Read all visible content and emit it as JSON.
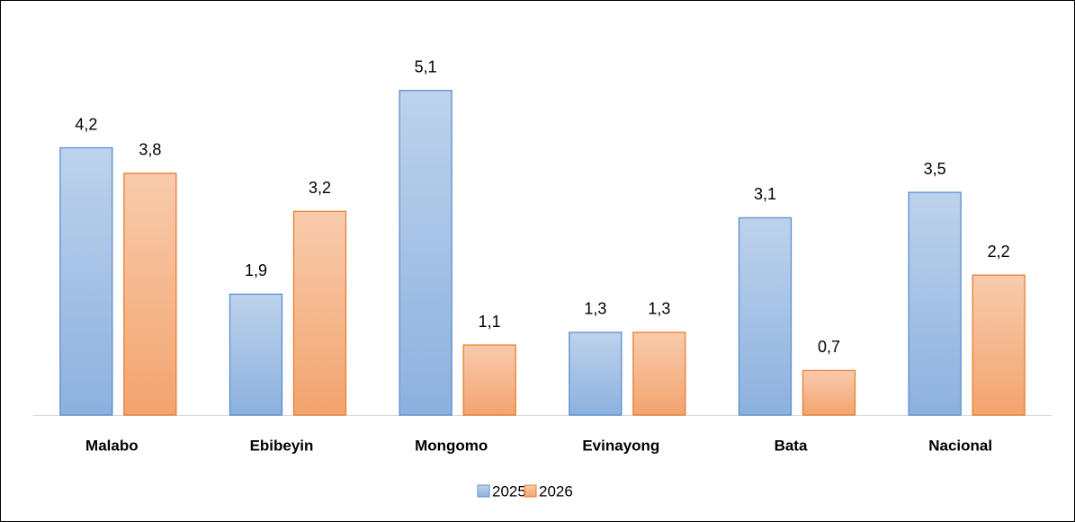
{
  "chart_data": {
    "type": "bar",
    "categories": [
      "Malabo",
      "Ebibeyin",
      "Mongomo",
      "Evinayong",
      "Bata",
      "Nacional"
    ],
    "series": [
      {
        "name": "2025",
        "color": "#5b8fd0",
        "values": [
          4.2,
          1.9,
          5.1,
          1.3,
          3.1,
          3.5
        ],
        "value_labels": [
          "4,2",
          "1,9",
          "5,1",
          "1,3",
          "3,1",
          "3,5"
        ]
      },
      {
        "name": "2026",
        "color": "#ed7d31",
        "values": [
          3.8,
          3.2,
          1.1,
          1.3,
          0.7,
          2.2
        ],
        "value_labels": [
          "3,8",
          "3,2",
          "1,1",
          "1,3",
          "0,7",
          "2,2"
        ]
      }
    ],
    "ylim": [
      0,
      6
    ],
    "legend": "bottom"
  }
}
